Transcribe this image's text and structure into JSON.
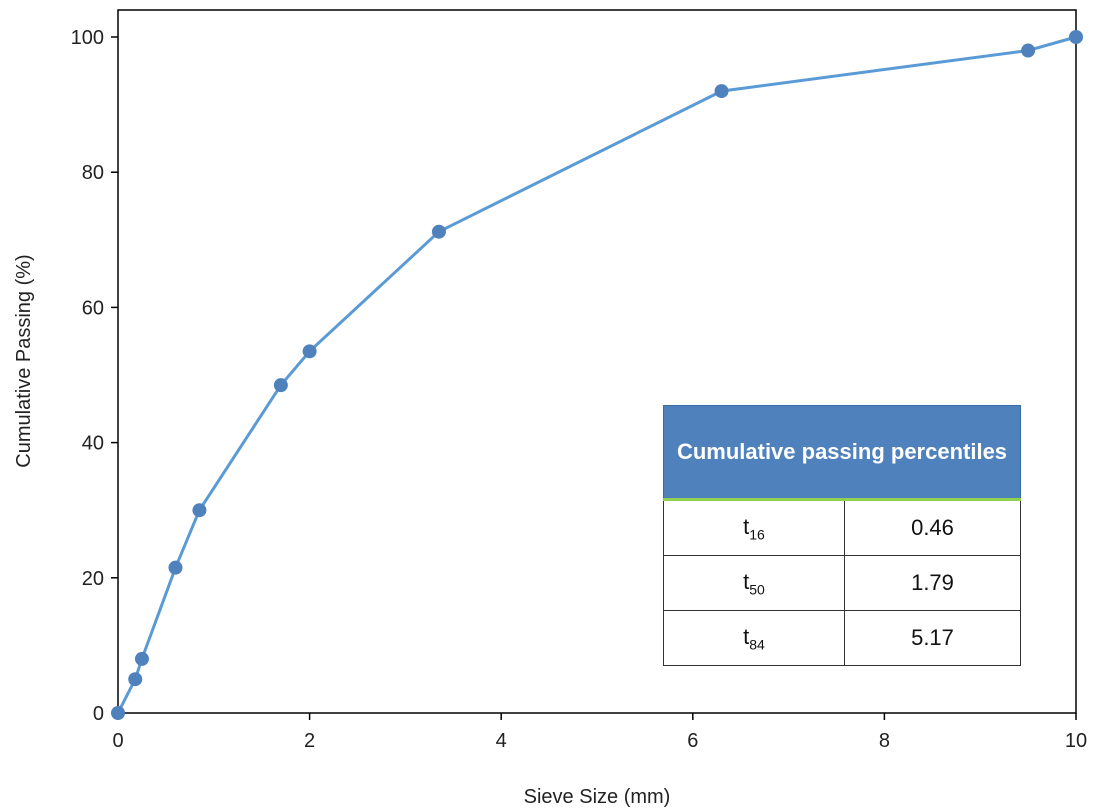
{
  "chart_data": {
    "type": "line",
    "title": "",
    "xlabel": "Sieve Size (mm)",
    "ylabel": "Cumulative Passing (%)",
    "xlim": [
      0,
      10
    ],
    "ylim": [
      0,
      100
    ],
    "xticks": [
      0,
      2,
      4,
      6,
      8,
      10
    ],
    "yticks": [
      0,
      20,
      40,
      60,
      80,
      100
    ],
    "grid": false,
    "series": [
      {
        "color": "#4f81bd",
        "x": [
          0,
          0.18,
          0.25,
          0.6,
          0.85,
          1.7,
          2.0,
          3.35,
          6.3,
          9.5,
          10
        ],
        "y": [
          0,
          5,
          8,
          21.5,
          30,
          48.5,
          53.5,
          71.2,
          92,
          98,
          100
        ]
      }
    ]
  },
  "table": {
    "header": "Cumulative passing percentiles",
    "rows": [
      {
        "label": "t",
        "sub": "16",
        "value": "0.46"
      },
      {
        "label": "t",
        "sub": "50",
        "value": "1.79"
      },
      {
        "label": "t",
        "sub": "84",
        "value": "5.17"
      }
    ]
  }
}
